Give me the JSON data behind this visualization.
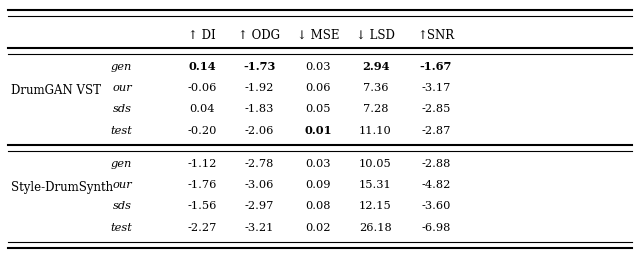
{
  "title": "",
  "columns": [
    "↑ DI",
    "↑ ODG",
    "↓ MSE",
    "↓ LSD",
    "↑SNR"
  ],
  "row_groups": [
    {
      "group_label": "DrumGAN VST",
      "rows": [
        {
          "label": "gen",
          "values": [
            "0.14",
            "-1.73",
            "0.03",
            "2.94",
            "-1.67"
          ],
          "bold": [
            true,
            true,
            false,
            true,
            true
          ]
        },
        {
          "label": "our",
          "values": [
            "-0.06",
            "-1.92",
            "0.06",
            "7.36",
            "-3.17"
          ],
          "bold": [
            false,
            false,
            false,
            false,
            false
          ]
        },
        {
          "label": "sds",
          "values": [
            "0.04",
            "-1.83",
            "0.05",
            "7.28",
            "-2.85"
          ],
          "bold": [
            false,
            false,
            false,
            false,
            false
          ]
        },
        {
          "label": "test",
          "values": [
            "-0.20",
            "-2.06",
            "0.01",
            "11.10",
            "-2.87"
          ],
          "bold": [
            false,
            false,
            true,
            false,
            false
          ]
        }
      ]
    },
    {
      "group_label": "Style-DrumSynth",
      "rows": [
        {
          "label": "gen",
          "values": [
            "-1.12",
            "-2.78",
            "0.03",
            "10.05",
            "-2.88"
          ],
          "bold": [
            false,
            false,
            false,
            false,
            false
          ]
        },
        {
          "label": "our",
          "values": [
            "-1.76",
            "-3.06",
            "0.09",
            "15.31",
            "-4.82"
          ],
          "bold": [
            false,
            false,
            false,
            false,
            false
          ]
        },
        {
          "label": "sds",
          "values": [
            "-1.56",
            "-2.97",
            "0.08",
            "12.15",
            "-3.60"
          ],
          "bold": [
            false,
            false,
            false,
            false,
            false
          ]
        },
        {
          "label": "test",
          "values": [
            "-2.27",
            "-3.21",
            "0.02",
            "26.18",
            "-6.98"
          ],
          "bold": [
            false,
            false,
            false,
            false,
            false
          ]
        }
      ]
    }
  ],
  "figsize": [
    6.4,
    2.6
  ],
  "dpi": 100
}
